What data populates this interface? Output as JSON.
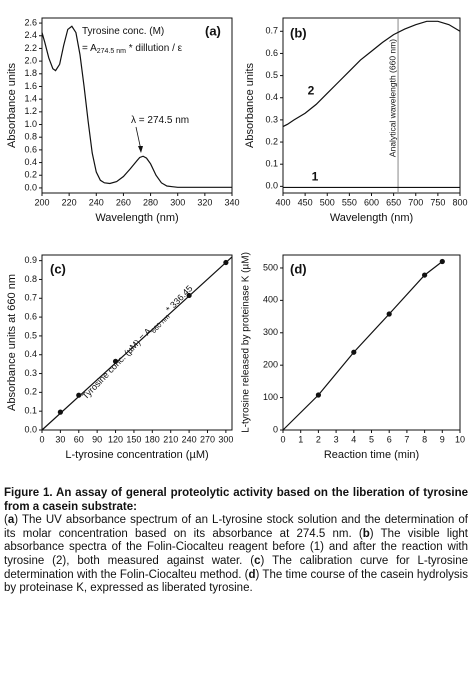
{
  "chart_data": [
    {
      "type": "line",
      "panel": "(a)",
      "xlabel": "Wavelength (nm)",
      "ylabel": "Absorbance units",
      "xlim": [
        200,
        340
      ],
      "xticks": [
        200,
        220,
        240,
        260,
        280,
        300,
        320,
        340
      ],
      "ylim": [
        -0.08,
        2.68
      ],
      "yticks": [
        {
          "value": 0,
          "label": "0.0"
        },
        0.2,
        0.4,
        0.6,
        0.8,
        {
          "value": 1,
          "label": "1.0"
        },
        1.2,
        1.4,
        1.6,
        1.8,
        {
          "value": 2,
          "label": "2.0"
        },
        2.2,
        2.4,
        2.6
      ],
      "series": [
        {
          "color": "#111111",
          "x": [
            200,
            202,
            205,
            208,
            210,
            213,
            216,
            219,
            222,
            225,
            228,
            231,
            234,
            237,
            240,
            243,
            246,
            250,
            255,
            260,
            265,
            270,
            272,
            274.5,
            277,
            280,
            284,
            288,
            292,
            296,
            300,
            310,
            320,
            330,
            340
          ],
          "values": [
            2.45,
            2.3,
            2.05,
            1.88,
            1.85,
            1.95,
            2.25,
            2.5,
            2.55,
            2.45,
            2.1,
            1.6,
            1.05,
            0.55,
            0.25,
            0.12,
            0.08,
            0.07,
            0.1,
            0.18,
            0.3,
            0.43,
            0.48,
            0.5,
            0.47,
            0.38,
            0.2,
            0.08,
            0.03,
            0.02,
            0.01,
            0.01,
            0.01,
            0.01,
            0.01
          ]
        }
      ],
      "annotations": [
        {
          "parts": [
            "Tyrosine conc. (M)"
          ]
        },
        {
          "parts": [
            "= A",
            "274.5 nm",
            " * dillution / ε"
          ]
        },
        {
          "parts": [
            "λ = 274.5 nm"
          ]
        }
      ]
    },
    {
      "type": "line",
      "panel": "(b)",
      "xlabel": "Wavelength (nm)",
      "ylabel": "Absorbance units",
      "xlim": [
        400,
        800
      ],
      "xticks": [
        400,
        450,
        500,
        550,
        600,
        650,
        700,
        750,
        800
      ],
      "ylim": [
        -0.03,
        0.76
      ],
      "yticks": [
        {
          "value": 0,
          "label": "0.0"
        },
        0.1,
        0.2,
        0.3,
        0.4,
        0.5,
        0.6,
        0.7
      ],
      "series": [
        {
          "name": "2",
          "color": "#111111",
          "x": [
            400,
            410,
            425,
            450,
            475,
            500,
            525,
            550,
            575,
            600,
            625,
            650,
            675,
            700,
            725,
            750,
            775,
            800
          ],
          "values": [
            0.27,
            0.28,
            0.3,
            0.33,
            0.37,
            0.42,
            0.47,
            0.52,
            0.57,
            0.61,
            0.65,
            0.685,
            0.71,
            0.73,
            0.745,
            0.745,
            0.73,
            0.7
          ]
        },
        {
          "name": "1",
          "color": "#111111",
          "x": [
            400,
            800
          ],
          "values": [
            -0.005,
            -0.005
          ]
        }
      ],
      "vline": {
        "value": 660,
        "label": "Analytical wavelength (660 nm)",
        "color": "#888888"
      }
    },
    {
      "type": "scatter",
      "panel": "(c)",
      "xlabel": "L-tyrosine concentration (µM)",
      "ylabel": "Absorbance units at 660 nm",
      "xlim": [
        0,
        310
      ],
      "xticks": [
        0,
        30,
        60,
        90,
        120,
        150,
        180,
        210,
        240,
        270,
        300
      ],
      "ylim": [
        0,
        0.93
      ],
      "yticks": [
        {
          "value": 0,
          "label": "0.0"
        },
        0.1,
        0.2,
        0.3,
        0.4,
        0.5,
        0.6,
        0.7,
        0.8,
        0.9
      ],
      "series": [
        {
          "color": "#111111",
          "x": [
            30,
            60,
            120,
            240,
            300
          ],
          "values": [
            0.095,
            0.185,
            0.365,
            0.715,
            0.89
          ]
        }
      ],
      "fit": {
        "x": [
          0,
          310
        ],
        "values": [
          0,
          0.92
        ]
      },
      "annotations": [
        {
          "parts": [
            "Tyrosine conc. (µM) = A",
            "660 nm",
            " * 336.45"
          ]
        }
      ]
    },
    {
      "type": "scatter",
      "panel": "(d)",
      "xlabel": "Reaction time (min)",
      "ylabel": "L-tyrosine released by proteinase K (µM)",
      "xlim": [
        0,
        10
      ],
      "xticks": [
        0,
        1,
        2,
        3,
        4,
        5,
        6,
        7,
        8,
        9,
        10
      ],
      "ylim": [
        0,
        540
      ],
      "yticks": [
        0,
        100,
        200,
        300,
        400,
        500
      ],
      "series": [
        {
          "color": "#111111",
          "x": [
            2,
            4,
            6,
            8,
            9
          ],
          "values": [
            108,
            240,
            358,
            478,
            520
          ]
        }
      ],
      "fit": {
        "x": [
          0,
          2,
          4,
          6,
          8,
          9
        ],
        "values": [
          0,
          108,
          240,
          358,
          478,
          520
        ]
      }
    }
  ],
  "caption": {
    "title": "Figure 1. An assay of general proteolytic activity based on the liberation of tyrosine from a casein substrate:",
    "body": [
      "(",
      "a",
      ") The UV absorbance spectrum of an L-tyrosine stock solution and the determination of its molar concentration based on its absorbance at 274.5 nm. (",
      "b",
      ") The visible light absorbance spectra of the Folin-Ciocalteu reagent before (1) and after the reaction with tyrosine (2), both measured against water. (",
      "c",
      ") The calibration curve for L-tyrosine determination with the Folin-Ciocalteu method. (",
      "d",
      ") The time course of the casein hydrolysis by proteinase K, expressed as liberated tyrosine."
    ]
  }
}
